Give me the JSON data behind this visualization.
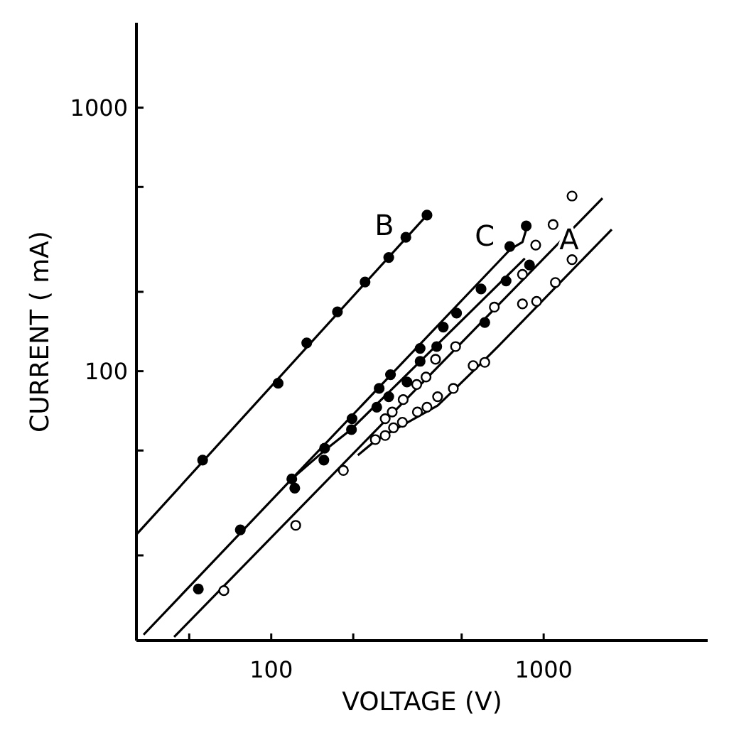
{
  "chart_data": {
    "type": "scatter",
    "xlabel": "VOLTAGE (V)",
    "ylabel": "CURRENT ( mA)",
    "log": "xy",
    "grid": false,
    "legend": false,
    "xlim": [
      32,
      4000
    ],
    "xticks": [
      {
        "value": 50,
        "label": null
      },
      100,
      {
        "value": 200,
        "label": null
      },
      {
        "value": 500,
        "label": null
      },
      1000
    ],
    "ylim": [
      9.5,
      2100
    ],
    "yticks": [
      {
        "value": 20,
        "label": null
      },
      {
        "value": 50,
        "label": null
      },
      100,
      {
        "value": 200,
        "label": null
      },
      {
        "value": 500,
        "label": null
      },
      1000
    ],
    "series": [
      {
        "type": "line",
        "marker": "none",
        "color": "#000000",
        "x": [
          32,
          373
        ],
        "values": [
          24,
          391
        ]
      },
      {
        "type": "line",
        "name": "C",
        "marker": "none",
        "color": "#000000",
        "x": [
          34,
          119,
          757,
          836,
          871
        ],
        "values": [
          10,
          39,
          291,
          309,
          356
        ]
      },
      {
        "type": "line",
        "marker": "none",
        "color": "#000000",
        "x": [
          119,
          157,
          196,
          853
        ],
        "values": [
          39,
          50,
          60,
          268
        ]
      },
      {
        "type": "line",
        "marker": "none",
        "color": "#000000",
        "x": [
          44,
          1644
        ],
        "values": [
          9.8,
          453
        ]
      },
      {
        "type": "line",
        "name": "A",
        "marker": "none",
        "color": "#000000",
        "x": [
          208,
          244,
          309,
          408,
          469,
          562,
          685,
          1778
        ],
        "values": [
          48,
          55,
          63,
          74,
          85,
          102,
          125,
          345
        ]
      },
      {
        "name": "B",
        "marker": "circle",
        "color": "#000000",
        "x": [
          56,
          106,
          135,
          175,
          221,
          270,
          312,
          373
        ],
        "values": [
          46,
          90,
          128,
          168,
          218,
          270,
          322,
          391
        ]
      },
      {
        "marker": "circle",
        "color": "#000000",
        "x": [
          54,
          77,
          119,
          157,
          198,
          249,
          274,
          352,
          428,
          479,
          589,
          751,
          863
        ],
        "values": [
          14.9,
          25,
          39,
          51,
          66,
          86,
          97,
          122,
          147,
          166,
          205,
          297,
          356
        ]
      },
      {
        "marker": "circle",
        "color": "#000000",
        "x": [
          122,
          156,
          197,
          244,
          270,
          315,
          352,
          405,
          608,
          728,
          887
        ],
        "values": [
          36,
          46,
          60,
          73,
          80,
          91,
          109,
          124,
          153,
          220,
          253
        ]
      },
      {
        "marker": "circle",
        "color": "#ffffff",
        "x": [
          67,
          123,
          184,
          241,
          262,
          281,
          303,
          344,
          373,
          408,
          466,
          551,
          608,
          262,
          278,
          305,
          342,
          370,
          401,
          475,
          659,
          836,
          935,
          836,
          942,
          1104,
          1271,
          1083,
          1271
        ],
        "values": [
          14.7,
          26,
          42,
          55,
          57,
          61,
          64,
          70,
          73,
          80,
          86,
          105,
          108,
          66,
          70,
          78,
          89,
          95,
          111,
          124,
          175,
          233,
          301,
          180,
          184,
          217,
          265,
          360,
          462
        ]
      }
    ]
  }
}
